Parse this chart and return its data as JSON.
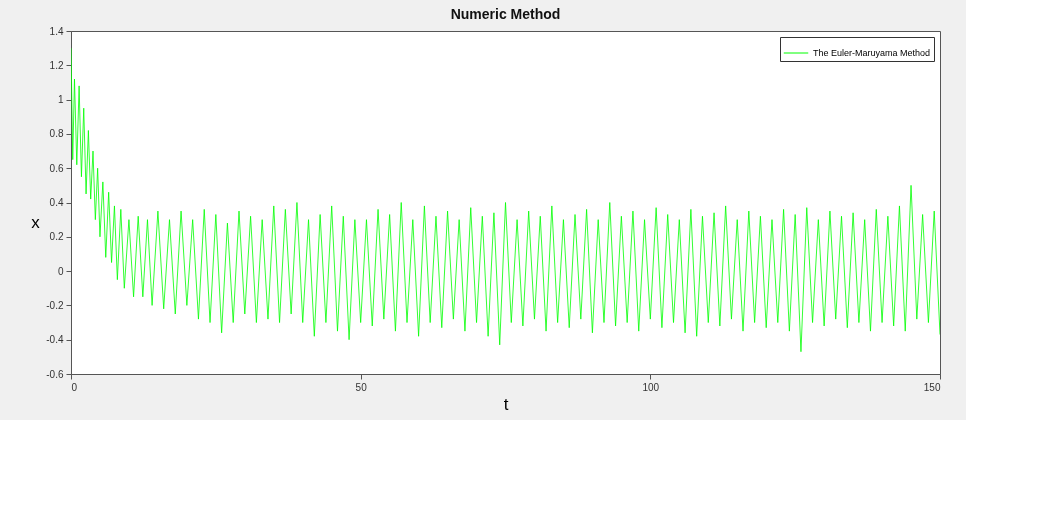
{
  "chart_data": {
    "type": "line",
    "title": "Numeric Method",
    "xlabel": "t",
    "ylabel": "x",
    "xlim": [
      0,
      150
    ],
    "xticks": [
      0,
      50,
      100,
      150
    ],
    "ylim": [
      -0.6,
      1.4
    ],
    "yticks": [
      -0.6,
      -0.4,
      -0.2,
      0,
      0.2,
      0.4,
      0.6,
      0.8,
      1,
      1.2,
      1.4
    ],
    "grid": false,
    "legend": "top right",
    "line_style": "solid",
    "marker": "none",
    "series": [
      {
        "name": "The Euler-Maruyama Method",
        "color": "#00ff00",
        "x": [
          0,
          0.3,
          0.6,
          1,
          1.4,
          1.8,
          2.2,
          2.6,
          3,
          3.4,
          3.8,
          4.2,
          4.6,
          5,
          5.5,
          6,
          6.5,
          7,
          7.5,
          8,
          8.6,
          9.2,
          10,
          10.8,
          11.6,
          12.4,
          13.2,
          14,
          15,
          16,
          17,
          18,
          19,
          20,
          21,
          22,
          23,
          24,
          25,
          26,
          27,
          28,
          29,
          30,
          31,
          32,
          33,
          34,
          35,
          36,
          37,
          38,
          39,
          40,
          41,
          42,
          43,
          44,
          45,
          46,
          47,
          48,
          49,
          50,
          51,
          52,
          53,
          54,
          55,
          56,
          57,
          58,
          59,
          60,
          61,
          62,
          63,
          64,
          65,
          66,
          67,
          68,
          69,
          70,
          71,
          72,
          73,
          74,
          75,
          76,
          77,
          78,
          79,
          80,
          81,
          82,
          83,
          84,
          85,
          86,
          87,
          88,
          89,
          90,
          91,
          92,
          93,
          94,
          95,
          96,
          97,
          98,
          99,
          100,
          101,
          102,
          103,
          104,
          105,
          106,
          107,
          108,
          109,
          110,
          111,
          112,
          113,
          114,
          115,
          116,
          117,
          118,
          119,
          120,
          121,
          122,
          123,
          124,
          125,
          126,
          127,
          128,
          129,
          130,
          131,
          132,
          133,
          134,
          135,
          136,
          137,
          138,
          139,
          140,
          141,
          142,
          143,
          144,
          145,
          146,
          147,
          148,
          149,
          150
        ],
        "values": [
          1.3,
          0.65,
          1.12,
          0.62,
          1.08,
          0.55,
          0.95,
          0.45,
          0.82,
          0.42,
          0.7,
          0.3,
          0.6,
          0.2,
          0.52,
          0.08,
          0.46,
          0.05,
          0.38,
          -0.05,
          0.36,
          -0.1,
          0.3,
          -0.15,
          0.32,
          -0.15,
          0.3,
          -0.2,
          0.35,
          -0.22,
          0.3,
          -0.25,
          0.35,
          -0.2,
          0.3,
          -0.28,
          0.36,
          -0.3,
          0.33,
          -0.36,
          0.28,
          -0.3,
          0.35,
          -0.25,
          0.32,
          -0.3,
          0.3,
          -0.28,
          0.38,
          -0.3,
          0.36,
          -0.25,
          0.4,
          -0.3,
          0.3,
          -0.38,
          0.33,
          -0.3,
          0.38,
          -0.35,
          0.32,
          -0.4,
          0.3,
          -0.3,
          0.3,
          -0.32,
          0.36,
          -0.28,
          0.33,
          -0.35,
          0.4,
          -0.3,
          0.3,
          -0.38,
          0.38,
          -0.3,
          0.32,
          -0.33,
          0.35,
          -0.28,
          0.3,
          -0.35,
          0.37,
          -0.3,
          0.32,
          -0.38,
          0.34,
          -0.43,
          0.4,
          -0.3,
          0.3,
          -0.32,
          0.35,
          -0.28,
          0.32,
          -0.35,
          0.38,
          -0.3,
          0.3,
          -0.33,
          0.33,
          -0.28,
          0.36,
          -0.36,
          0.3,
          -0.3,
          0.4,
          -0.32,
          0.32,
          -0.3,
          0.35,
          -0.35,
          0.3,
          -0.28,
          0.37,
          -0.33,
          0.33,
          -0.3,
          0.3,
          -0.36,
          0.36,
          -0.38,
          0.32,
          -0.3,
          0.34,
          -0.32,
          0.38,
          -0.28,
          0.3,
          -0.35,
          0.35,
          -0.3,
          0.32,
          -0.33,
          0.3,
          -0.3,
          0.36,
          -0.35,
          0.33,
          -0.47,
          0.37,
          -0.3,
          0.3,
          -0.32,
          0.35,
          -0.28,
          0.32,
          -0.33,
          0.34,
          -0.3,
          0.3,
          -0.35,
          0.36,
          -0.3,
          0.32,
          -0.32,
          0.38,
          -0.35,
          0.5,
          -0.28,
          0.33,
          -0.3,
          0.35,
          -0.37
        ]
      }
    ]
  }
}
